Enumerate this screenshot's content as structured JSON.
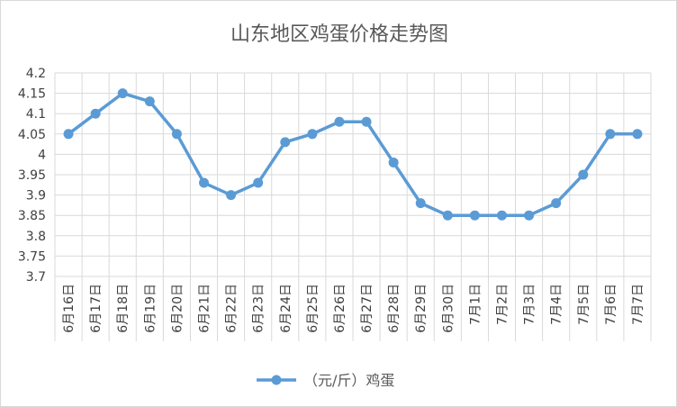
{
  "chart_data": {
    "type": "line",
    "title": "山东地区鸡蛋价格走势图",
    "categories": [
      "6月16日",
      "6月17日",
      "6月18日",
      "6月19日",
      "6月20日",
      "6月21日",
      "6月22日",
      "6月23日",
      "6月24日",
      "6月25日",
      "6月26日",
      "6月27日",
      "6月28日",
      "6月29日",
      "6月30日",
      "7月1日",
      "7月2日",
      "7月3日",
      "7月4日",
      "7月5日",
      "7月6日",
      "7月7日"
    ],
    "series": [
      {
        "name": "（元/斤）鸡蛋",
        "values": [
          4.05,
          4.1,
          4.15,
          4.13,
          4.05,
          3.93,
          3.9,
          3.93,
          4.03,
          4.05,
          4.08,
          4.08,
          3.98,
          3.88,
          3.85,
          3.85,
          3.85,
          3.85,
          3.88,
          3.95,
          4.05,
          4.05
        ],
        "color": "#5b9bd5"
      }
    ],
    "ylim": [
      3.7,
      4.2
    ],
    "yticks": [
      "3.7",
      "3.75",
      "3.8",
      "3.85",
      "3.9",
      "3.95",
      "4",
      "4.05",
      "4.1",
      "4.15",
      "4.2"
    ],
    "xlabel": "",
    "ylabel": "",
    "grid": true,
    "legend_position": "bottom"
  }
}
